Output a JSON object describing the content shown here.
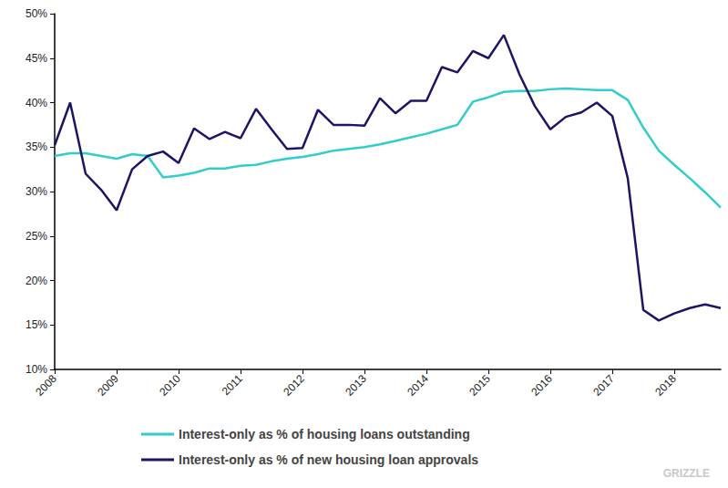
{
  "chart_data": {
    "type": "line",
    "x": [
      2008,
      2008.25,
      2008.5,
      2008.75,
      2009,
      2009.25,
      2009.5,
      2009.75,
      2010,
      2010.25,
      2010.5,
      2010.75,
      2011,
      2011.25,
      2011.5,
      2011.75,
      2012,
      2012.25,
      2012.5,
      2012.75,
      2013,
      2013.25,
      2013.5,
      2013.75,
      2014,
      2014.25,
      2014.5,
      2014.75,
      2015,
      2015.25,
      2015.5,
      2015.75,
      2016,
      2016.25,
      2016.5,
      2016.75,
      2017,
      2017.25,
      2017.5,
      2017.75,
      2018,
      2018.25,
      2018.5,
      2018.75
    ],
    "series": [
      {
        "name": "Interest-only as % of housing loans outstanding",
        "color": "#33cccc",
        "values": [
          34.0,
          34.3,
          34.3,
          34.0,
          33.7,
          34.2,
          34.0,
          31.6,
          31.8,
          32.1,
          32.6,
          32.6,
          32.9,
          33.0,
          33.4,
          33.7,
          33.9,
          34.2,
          34.6,
          34.8,
          35.0,
          35.3,
          35.7,
          36.1,
          36.5,
          37.0,
          37.5,
          40.1,
          40.6,
          41.2,
          41.3,
          41.3,
          41.5,
          41.6,
          41.5,
          41.4,
          41.4,
          40.3,
          37.2,
          34.6,
          33.0,
          31.5,
          29.9,
          28.2
        ]
      },
      {
        "name": "Interest-only as % of new housing loan approvals",
        "color": "#1c1464",
        "values": [
          35.2,
          40.0,
          32.0,
          30.2,
          27.9,
          32.5,
          34.0,
          34.5,
          33.2,
          37.1,
          35.9,
          36.7,
          36.0,
          39.3,
          37.0,
          34.8,
          34.9,
          39.2,
          37.5,
          37.5,
          37.4,
          40.5,
          38.8,
          40.2,
          40.2,
          44.0,
          43.4,
          45.8,
          45.0,
          47.6,
          43.2,
          39.6,
          37.0,
          38.4,
          38.9,
          40.0,
          38.5,
          31.5,
          16.7,
          15.5,
          16.3,
          16.9,
          17.3,
          16.9
        ]
      }
    ],
    "xlim": [
      2008,
      2018.75
    ],
    "xticks": [
      2008,
      2009,
      2010,
      2011,
      2012,
      2013,
      2014,
      2015,
      2016,
      2017,
      2018
    ],
    "ylim": [
      10,
      50
    ],
    "yticks": [
      {
        "value": 10,
        "label": "10%"
      },
      {
        "value": 15,
        "label": "15%"
      },
      {
        "value": 20,
        "label": "20%"
      },
      {
        "value": 25,
        "label": "25%"
      },
      {
        "value": 30,
        "label": "30%"
      },
      {
        "value": 35,
        "label": "35%"
      },
      {
        "value": 40,
        "label": "40%"
      },
      {
        "value": 45,
        "label": "45%"
      },
      {
        "value": 50,
        "label": "50%"
      }
    ],
    "grid": false,
    "legend": "bottom",
    "annotations": [
      "GRIZZLE"
    ]
  }
}
